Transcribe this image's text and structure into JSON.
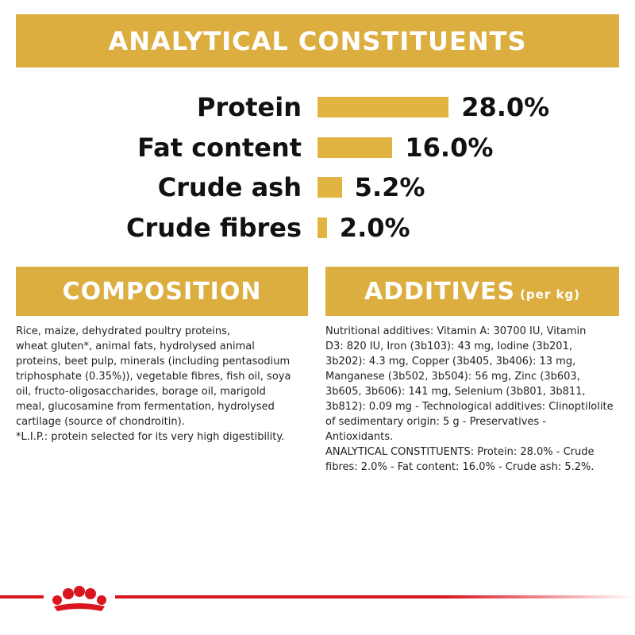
{
  "header": {
    "title": "ANALYTICAL CONSTITUENTS"
  },
  "constituents": {
    "categories": [
      "Protein",
      "Fat content",
      "Crude ash",
      "Crude fibres"
    ],
    "values": [
      28.0,
      16.0,
      5.2,
      2.0
    ],
    "value_labels": [
      "28.0%",
      "16.0%",
      "5.2%",
      "2.0%"
    ],
    "color": "#e1b441"
  },
  "composition": {
    "title": "COMPOSITION",
    "lines": [
      "Rice, maize, dehydrated poultry proteins,",
      "wheat gluten*, animal fats, hydrolysed animal",
      "proteins, beet pulp, minerals (including pentasodium",
      "triphosphate (0.35%)), vegetable fibres, fish oil, soya",
      "oil, fructo-oligosaccharides, borage oil, marigold",
      "meal, glucosamine from fermentation, hydrolysed",
      "cartilage (source of chondroitin).",
      "*L.I.P.: protein selected for its very high digestibility."
    ]
  },
  "additives": {
    "title": "ADDITIVES",
    "title_note": "(per kg)",
    "lines": [
      "Nutritional additives: Vitamin A: 30700 IU, Vitamin",
      "D3: 820 IU, Iron (3b103): 43 mg, Iodine (3b201,",
      "3b202): 4.3 mg, Copper (3b405, 3b406): 13 mg,",
      "Manganese (3b502, 3b504): 56 mg, Zinc (3b603,",
      "3b605, 3b606): 141 mg, Selenium (3b801, 3b811,",
      "3b812): 0.09 mg - Technological additives: Clinoptilolite",
      "of sedimentary origin: 5 g - Preservatives -",
      "Antioxidants.",
      "ANALYTICAL CONSTITUENTS: Protein: 28.0% - Crude",
      "fibres: 2.0% - Fat content: 16.0% - Crude ash: 5.2%."
    ]
  }
}
